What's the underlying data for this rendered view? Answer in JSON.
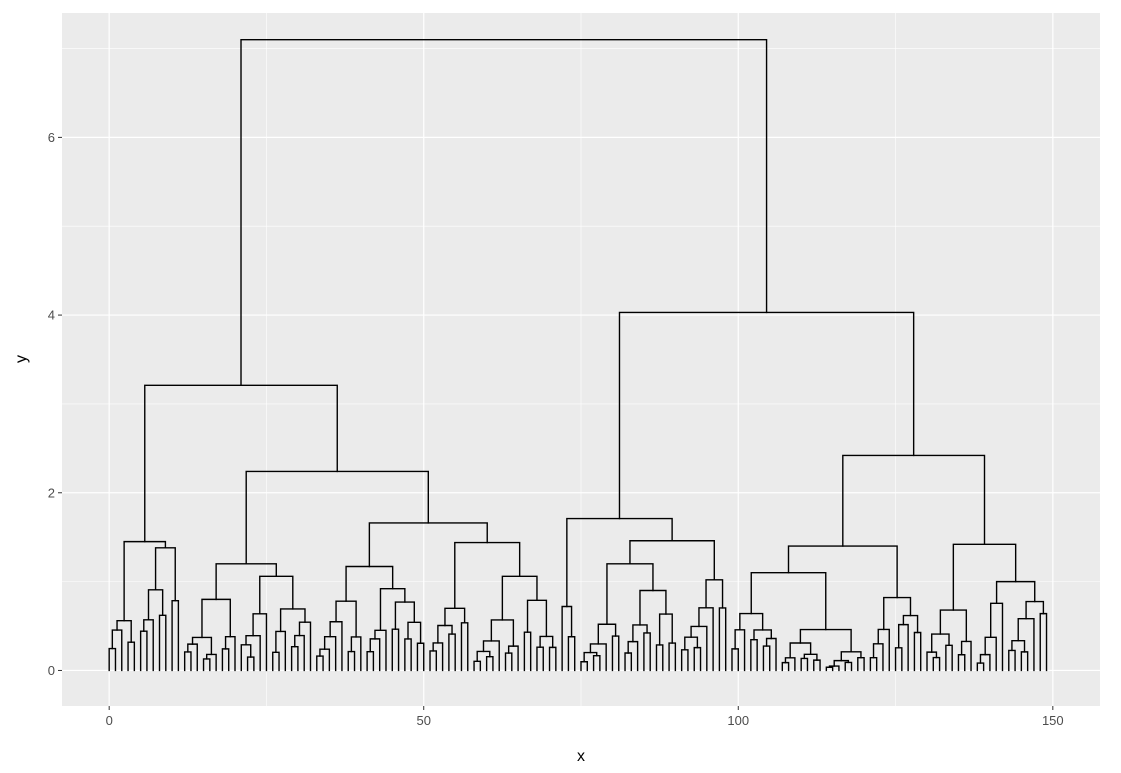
{
  "chart_data": {
    "type": "dendrogram",
    "xlabel": "x",
    "ylabel": "y",
    "xlim": [
      -7.5,
      157.5
    ],
    "ylim": [
      -0.4,
      7.4
    ],
    "x_ticks": [
      0,
      50,
      100,
      150
    ],
    "x_tick_labels": [
      "0",
      "50",
      "100",
      "150"
    ],
    "y_ticks": [
      0,
      2,
      4,
      6
    ],
    "y_tick_labels": [
      "0",
      "2",
      "4",
      "6"
    ],
    "x_minor_ticks": [
      25,
      75,
      125
    ],
    "y_minor_ticks": [
      1,
      3,
      5,
      7
    ],
    "grid": true,
    "panel_background": "#ebebeb",
    "grid_color": "#ffffff",
    "line_color": "#000000",
    "leaf_count": 150,
    "leaf_x_range": [
      0,
      149
    ],
    "merges": [
      {
        "x1": 20,
        "x2": 100,
        "height": 7.1
      },
      {
        "x1": 5,
        "x2": 35,
        "height": 3.21
      },
      {
        "x1": 78,
        "x2": 122,
        "height": 4.03
      },
      {
        "x1": 2,
        "x2": 8,
        "height": 1.45
      },
      {
        "x1": 21,
        "x2": 49,
        "height": 2.24
      },
      {
        "x1": 16,
        "x2": 26,
        "height": 1.2
      },
      {
        "x1": 41,
        "x2": 57,
        "height": 1.66
      },
      {
        "x1": 37,
        "x2": 45,
        "height": 1.17
      },
      {
        "x1": 52,
        "x2": 62,
        "height": 1.44
      },
      {
        "x1": 73,
        "x2": 82,
        "height": 1.71
      },
      {
        "x1": 76,
        "x2": 87,
        "height": 1.46
      },
      {
        "x1": 81,
        "x2": 92,
        "height": 1.2
      },
      {
        "x1": 107,
        "x2": 136,
        "height": 2.42
      },
      {
        "x1": 100,
        "x2": 114,
        "height": 1.4
      },
      {
        "x1": 107,
        "x2": 122,
        "height": 1.1
      },
      {
        "x1": 131,
        "x2": 141,
        "height": 1.42
      }
    ]
  }
}
